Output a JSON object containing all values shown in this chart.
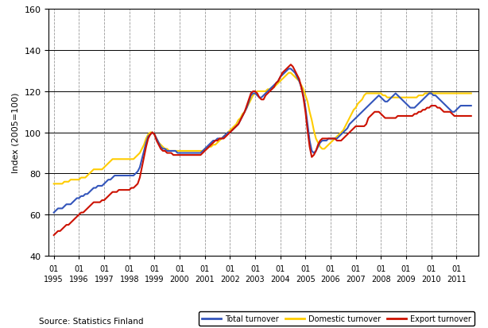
{
  "ylabel": "Index (2005=100)",
  "source": "Source: Statistics Finland",
  "ylim": [
    40,
    160
  ],
  "yticks": [
    40,
    60,
    80,
    100,
    120,
    140,
    160
  ],
  "background_color": "#ffffff",
  "grid_color": "#999999",
  "line_colors": {
    "total": "#3355bb",
    "domestic": "#ffcc00",
    "export": "#cc1100"
  },
  "line_width": 1.5,
  "legend_labels": [
    "Total turnover",
    "Domestic turnover",
    "Export turnover"
  ],
  "total_turnover": [
    61,
    62,
    63,
    63,
    63,
    64,
    65,
    65,
    65,
    66,
    67,
    68,
    68,
    69,
    69,
    70,
    70,
    71,
    72,
    73,
    73,
    74,
    74,
    74,
    75,
    76,
    77,
    77,
    78,
    79,
    79,
    79,
    79,
    79,
    79,
    79,
    79,
    79,
    79,
    80,
    81,
    83,
    87,
    91,
    95,
    98,
    99,
    100,
    99,
    97,
    95,
    93,
    92,
    92,
    91,
    91,
    91,
    91,
    91,
    90,
    90,
    90,
    90,
    90,
    90,
    90,
    90,
    90,
    90,
    90,
    90,
    91,
    92,
    93,
    94,
    95,
    96,
    96,
    97,
    97,
    97,
    98,
    99,
    100,
    100,
    101,
    102,
    103,
    104,
    106,
    108,
    110,
    112,
    115,
    118,
    119,
    119,
    118,
    117,
    117,
    118,
    119,
    120,
    121,
    122,
    123,
    124,
    125,
    127,
    128,
    129,
    130,
    131,
    131,
    130,
    129,
    127,
    125,
    122,
    118,
    112,
    104,
    96,
    91,
    90,
    91,
    93,
    95,
    96,
    96,
    96,
    97,
    97,
    97,
    97,
    97,
    98,
    99,
    100,
    101,
    102,
    104,
    105,
    106,
    107,
    108,
    109,
    110,
    111,
    112,
    113,
    114,
    115,
    116,
    117,
    118,
    117,
    116,
    115,
    115,
    116,
    117,
    118,
    119,
    118,
    117,
    116,
    115,
    114,
    113,
    112,
    112,
    112,
    113,
    114,
    115,
    116,
    117,
    118,
    119,
    119,
    118,
    118,
    117,
    116,
    115,
    114,
    113,
    112,
    111,
    110,
    110,
    111,
    112,
    113,
    113
  ],
  "domestic_turnover": [
    75,
    75,
    75,
    75,
    75,
    76,
    76,
    76,
    77,
    77,
    77,
    77,
    77,
    78,
    78,
    78,
    79,
    80,
    81,
    82,
    82,
    82,
    82,
    82,
    83,
    84,
    85,
    86,
    87,
    87,
    87,
    87,
    87,
    87,
    87,
    87,
    87,
    87,
    87,
    88,
    89,
    90,
    92,
    94,
    97,
    99,
    100,
    100,
    99,
    97,
    95,
    94,
    93,
    92,
    92,
    91,
    91,
    91,
    91,
    91,
    91,
    91,
    91,
    91,
    91,
    91,
    91,
    91,
    91,
    91,
    91,
    91,
    92,
    92,
    93,
    93,
    94,
    94,
    95,
    96,
    97,
    98,
    99,
    100,
    101,
    102,
    103,
    104,
    106,
    107,
    109,
    110,
    112,
    114,
    116,
    118,
    119,
    120,
    120,
    120,
    120,
    120,
    121,
    121,
    122,
    122,
    123,
    124,
    125,
    126,
    127,
    128,
    129,
    129,
    128,
    127,
    126,
    125,
    123,
    121,
    118,
    115,
    110,
    106,
    101,
    97,
    95,
    93,
    92,
    92,
    93,
    94,
    95,
    96,
    97,
    98,
    99,
    100,
    101,
    103,
    105,
    107,
    109,
    111,
    112,
    114,
    115,
    116,
    118,
    119,
    119,
    119,
    119,
    119,
    119,
    119,
    119,
    118,
    118,
    117,
    117,
    117,
    117,
    117,
    117,
    117,
    117,
    117,
    117,
    117,
    117,
    117,
    117,
    117,
    118,
    118,
    118,
    119,
    119,
    119,
    119,
    119,
    119,
    119,
    119,
    119,
    119,
    119,
    119,
    119,
    119,
    119,
    119,
    119,
    119,
    119
  ],
  "export_turnover": [
    50,
    51,
    52,
    52,
    53,
    54,
    55,
    55,
    56,
    57,
    58,
    59,
    60,
    61,
    61,
    62,
    63,
    64,
    65,
    66,
    66,
    66,
    66,
    67,
    67,
    68,
    69,
    70,
    71,
    71,
    71,
    72,
    72,
    72,
    72,
    72,
    72,
    73,
    73,
    74,
    75,
    78,
    83,
    88,
    93,
    97,
    99,
    100,
    99,
    96,
    94,
    92,
    91,
    91,
    90,
    90,
    90,
    89,
    89,
    89,
    89,
    89,
    89,
    89,
    89,
    89,
    89,
    89,
    89,
    89,
    89,
    90,
    91,
    92,
    93,
    94,
    95,
    96,
    96,
    97,
    97,
    97,
    98,
    99,
    100,
    101,
    102,
    103,
    104,
    106,
    108,
    110,
    113,
    116,
    119,
    120,
    120,
    119,
    117,
    116,
    116,
    118,
    119,
    120,
    121,
    122,
    124,
    125,
    127,
    129,
    130,
    131,
    132,
    133,
    132,
    130,
    128,
    126,
    122,
    117,
    110,
    101,
    93,
    88,
    89,
    91,
    94,
    96,
    97,
    97,
    97,
    97,
    97,
    97,
    97,
    96,
    96,
    96,
    97,
    98,
    99,
    100,
    101,
    102,
    103,
    103,
    103,
    103,
    103,
    104,
    107,
    108,
    109,
    110,
    110,
    110,
    109,
    108,
    107,
    107,
    107,
    107,
    107,
    107,
    108,
    108,
    108,
    108,
    108,
    108,
    108,
    108,
    109,
    109,
    110,
    110,
    111,
    111,
    112,
    112,
    113,
    113,
    113,
    112,
    112,
    111,
    110,
    110,
    110,
    110,
    109,
    108,
    108,
    108,
    108,
    108
  ]
}
